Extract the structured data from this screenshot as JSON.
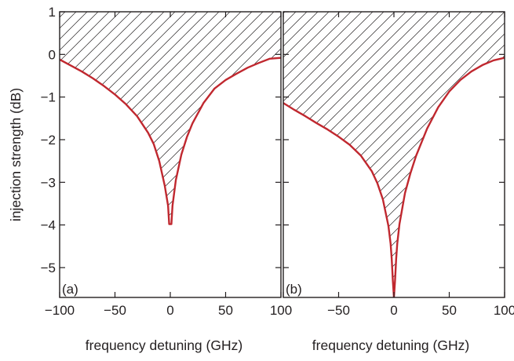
{
  "chart_data": [
    {
      "type": "area",
      "panel_label": "(a)",
      "xlabel": "frequency detuning (GHz)",
      "ylabel": "injection strength (dB)",
      "xlim": [
        -100,
        100
      ],
      "ylim": [
        -5.7,
        1
      ],
      "xticks": [
        -100,
        -50,
        0,
        50,
        100
      ],
      "xtick_labels": [
        "−100",
        "−50",
        "0",
        "50",
        "100"
      ],
      "yticks": [
        1,
        0,
        -1,
        -2,
        -3,
        -4,
        -5
      ],
      "ytick_labels": [
        "1",
        "0",
        "−1",
        "−2",
        "−3",
        "−4",
        "−5"
      ],
      "fill": "hatched region above the curve",
      "curve_color": "#c0282f",
      "series": [
        {
          "x": [
            -100,
            -90,
            -80,
            -70,
            -60,
            -50,
            -40,
            -30,
            -20,
            -15,
            -10,
            -5,
            -2,
            -1,
            0,
            1,
            2,
            5,
            10,
            15,
            20,
            30,
            40,
            50,
            60,
            70,
            80,
            90,
            100
          ],
          "y": [
            -0.12,
            -0.26,
            -0.4,
            -0.56,
            -0.74,
            -0.94,
            -1.17,
            -1.45,
            -1.84,
            -2.1,
            -2.5,
            -3.08,
            -3.55,
            -3.98,
            -3.98,
            -3.98,
            -3.55,
            -2.95,
            -2.35,
            -1.94,
            -1.62,
            -1.14,
            -0.8,
            -0.6,
            -0.45,
            -0.31,
            -0.2,
            -0.1,
            -0.08
          ]
        }
      ]
    },
    {
      "type": "area",
      "panel_label": "(b)",
      "xlabel": "frequency detuning (GHz)",
      "ylabel": "",
      "xlim": [
        -100,
        100
      ],
      "ylim": [
        -5.7,
        1
      ],
      "xticks": [
        -50,
        0,
        50,
        100
      ],
      "xtick_labels": [
        "−50",
        "0",
        "50",
        "100"
      ],
      "yticks": [
        1,
        0,
        -1,
        -2,
        -3,
        -4,
        -5
      ],
      "fill": "hatched region above the curve",
      "curve_color": "#c0282f",
      "series": [
        {
          "x": [
            -100,
            -90,
            -80,
            -70,
            -60,
            -50,
            -40,
            -30,
            -20,
            -15,
            -10,
            -5,
            -3,
            -2,
            -1,
            0,
            1,
            2,
            3,
            5,
            10,
            15,
            20,
            30,
            40,
            50,
            60,
            70,
            80,
            90,
            100
          ],
          "y": [
            -1.14,
            -1.3,
            -1.45,
            -1.61,
            -1.76,
            -1.93,
            -2.12,
            -2.37,
            -2.74,
            -3.02,
            -3.4,
            -4.02,
            -4.44,
            -4.8,
            -5.3,
            -5.7,
            -5.3,
            -4.8,
            -4.44,
            -3.98,
            -3.25,
            -2.78,
            -2.38,
            -1.74,
            -1.24,
            -0.87,
            -0.6,
            -0.4,
            -0.25,
            -0.14,
            -0.08
          ]
        }
      ]
    }
  ]
}
